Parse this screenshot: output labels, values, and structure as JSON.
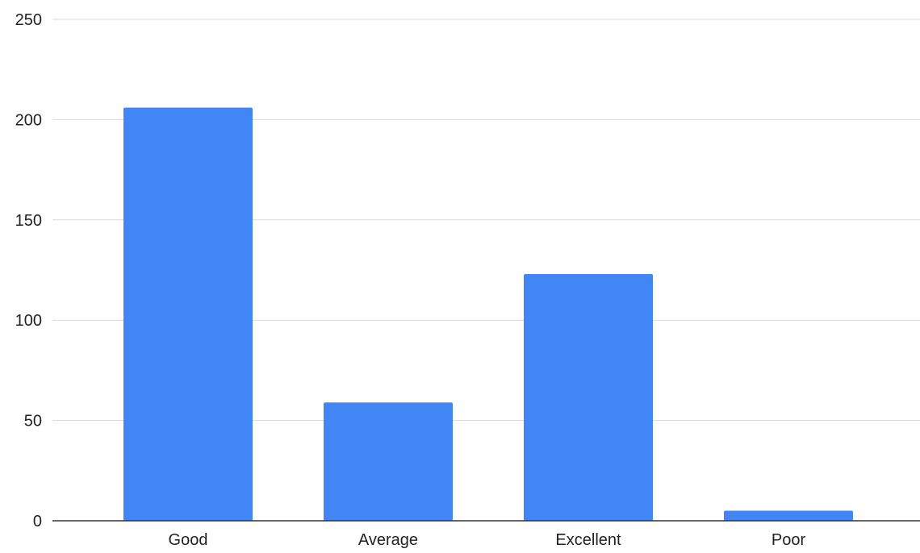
{
  "chart_data": {
    "type": "bar",
    "title": "",
    "xlabel": "",
    "ylabel": "",
    "categories": [
      "Good",
      "Average",
      "Excellent",
      "Poor"
    ],
    "values": [
      206,
      59,
      123,
      5
    ],
    "ylim": [
      0,
      250
    ],
    "yticks": [
      0,
      50,
      100,
      150,
      200,
      250
    ],
    "grid": true,
    "legend": "none",
    "bar_color": "#4285f4"
  }
}
